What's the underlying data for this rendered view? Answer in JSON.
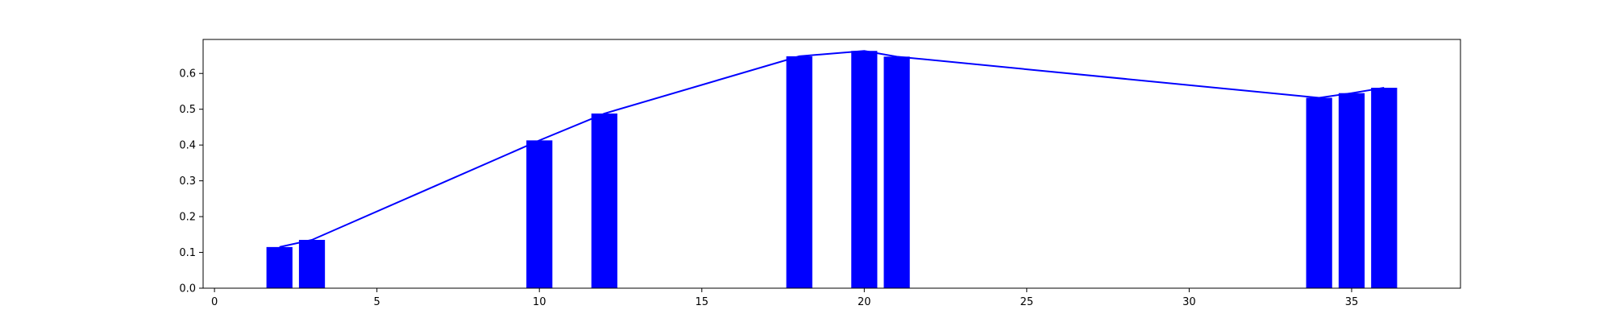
{
  "chart_data": {
    "type": "bar",
    "x": [
      2,
      3,
      10,
      12,
      18,
      20,
      21,
      34,
      35,
      36
    ],
    "values": [
      0.115,
      0.135,
      0.413,
      0.488,
      0.648,
      0.663,
      0.647,
      0.532,
      0.545,
      0.56
    ],
    "xlim": [
      -0.35,
      38.35
    ],
    "ylim": [
      0,
      0.695
    ],
    "xticks": [
      0,
      5,
      10,
      15,
      20,
      25,
      30,
      35
    ],
    "yticks": [
      0.0,
      0.1,
      0.2,
      0.3,
      0.4,
      0.5,
      0.6
    ],
    "xtick_labels": [
      "0",
      "5",
      "10",
      "15",
      "20",
      "25",
      "30",
      "35"
    ],
    "ytick_labels": [
      "0.0",
      "0.1",
      "0.2",
      "0.3",
      "0.4",
      "0.5",
      "0.6"
    ],
    "bar_color": "#0000ff",
    "line_color": "#0000ff",
    "overlay_line": true,
    "grid": false,
    "title": "",
    "xlabel": "",
    "ylabel": ""
  }
}
